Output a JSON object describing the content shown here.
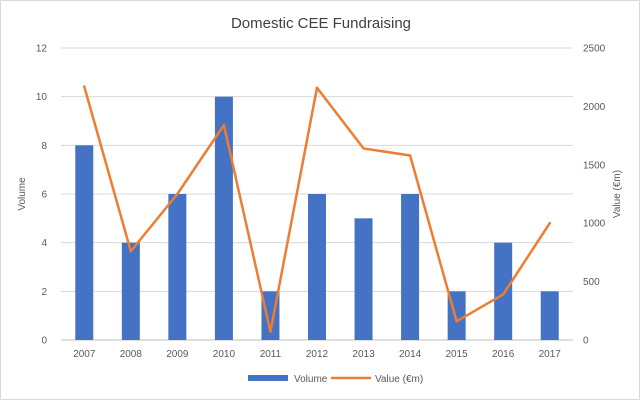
{
  "chart_data": {
    "type": "bar",
    "title": "Domestic CEE Fundraising",
    "categories": [
      "2007",
      "2008",
      "2009",
      "2010",
      "2011",
      "2012",
      "2013",
      "2014",
      "2015",
      "2016",
      "2017"
    ],
    "series": [
      {
        "name": "Volume",
        "type": "bar",
        "axis": "left",
        "color": "#4472C4",
        "values": [
          8,
          4,
          6,
          10,
          2,
          6,
          5,
          6,
          2,
          4,
          2
        ]
      },
      {
        "name": "Value (€m)",
        "type": "line",
        "axis": "right",
        "color": "#ED7D31",
        "values": [
          2170,
          760,
          1250,
          1840,
          70,
          2160,
          1640,
          1580,
          160,
          390,
          1000
        ]
      }
    ],
    "ylabel": "Volume",
    "y2label": "Value (€m)",
    "ylim": [
      0,
      12
    ],
    "y2lim": [
      0,
      2500
    ],
    "yticks": [
      "0",
      "2",
      "4",
      "6",
      "8",
      "10",
      "12"
    ],
    "y2ticks": [
      "0",
      "500",
      "1000",
      "1500",
      "2000",
      "2500"
    ],
    "grid": true,
    "legend": "bottom"
  }
}
